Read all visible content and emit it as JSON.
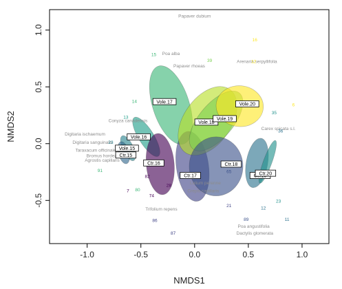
{
  "chart_data": {
    "type": "scatter",
    "xlabel": "NMDS1",
    "ylabel": "NMDS2",
    "xlim": [
      -1.35,
      1.25
    ],
    "ylim": [
      -0.88,
      1.18
    ],
    "x_ticks": [
      -1.0,
      -0.5,
      0.0,
      0.5,
      1.0
    ],
    "y_ticks": [
      -0.5,
      0.0,
      0.5,
      1.0
    ],
    "x_tick_labels": [
      "-1.0",
      "-0.5",
      "0.0",
      "0.5",
      "1.0"
    ],
    "y_tick_labels": [
      "-0.5",
      "0.0",
      "0.5",
      "1.0"
    ],
    "grid": false,
    "ellipses": [
      {
        "label": "Vole.17",
        "cx": -0.22,
        "cy": 0.34,
        "rx": 0.17,
        "ry": 0.36,
        "angle": 18,
        "color": "#3cb777"
      },
      {
        "label": "Vole.16",
        "cx": -0.45,
        "cy": 0.06,
        "rx": 0.07,
        "ry": 0.2,
        "angle": 32,
        "color": "#1f9e89"
      },
      {
        "label": "Vole.15",
        "cx": -0.62,
        "cy": -0.04,
        "rx": 0.05,
        "ry": 0.12,
        "angle": 25,
        "color": "#26828e"
      },
      {
        "label": "Ctr.15",
        "cx": -0.66,
        "cy": -0.08,
        "rx": 0.05,
        "ry": 0.1,
        "angle": 15,
        "color": "#30688e"
      },
      {
        "label": "Ctr.16",
        "cx": -0.32,
        "cy": -0.18,
        "rx": 0.13,
        "ry": 0.27,
        "angle": 5,
        "color": "#440154"
      },
      {
        "label": "Ctr.17",
        "cx": -0.02,
        "cy": -0.2,
        "rx": 0.15,
        "ry": 0.31,
        "angle": 8,
        "color": "#414487"
      },
      {
        "label": "Vole.18",
        "cx": 0.12,
        "cy": 0.2,
        "rx": 0.22,
        "ry": 0.34,
        "angle": -35,
        "color": "#b8de29"
      },
      {
        "label": "Vole.19",
        "cx": 0.2,
        "cy": 0.2,
        "rx": 0.16,
        "ry": 0.32,
        "angle": -40,
        "color": "#7ad151"
      },
      {
        "label": "Vole.20",
        "cx": 0.42,
        "cy": 0.33,
        "rx": 0.22,
        "ry": 0.18,
        "angle": -5,
        "color": "#fde725"
      },
      {
        "label": "Ctr.18",
        "cx": 0.2,
        "cy": -0.2,
        "rx": 0.25,
        "ry": 0.26,
        "angle": 0,
        "color": "#3b528b"
      },
      {
        "label": "Ctr.19",
        "cx": 0.58,
        "cy": -0.17,
        "rx": 0.1,
        "ry": 0.22,
        "angle": -10,
        "color": "#2c728e"
      },
      {
        "label": "Ctr.20",
        "cx": 0.68,
        "cy": -0.16,
        "rx": 0.04,
        "ry": 0.2,
        "angle": -20,
        "color": "#21918c"
      }
    ],
    "plot_labels": [
      {
        "text": "Vole.17",
        "x": -0.28,
        "y": 0.37
      },
      {
        "text": "Vole.16",
        "x": -0.52,
        "y": 0.06
      },
      {
        "text": "Vole.15",
        "x": -0.63,
        "y": -0.04
      },
      {
        "text": "Ctr.15",
        "x": -0.64,
        "y": -0.1
      },
      {
        "text": "Ctr.16",
        "x": -0.38,
        "y": -0.17
      },
      {
        "text": "Ctr.17",
        "x": -0.04,
        "y": -0.28
      },
      {
        "text": "Vole.18",
        "x": 0.11,
        "y": 0.19
      },
      {
        "text": "Vole.19",
        "x": 0.28,
        "y": 0.22
      },
      {
        "text": "Vole.20",
        "x": 0.49,
        "y": 0.35
      },
      {
        "text": "Ctr.18",
        "x": 0.34,
        "y": -0.18
      },
      {
        "text": "Ctr.19",
        "x": 0.61,
        "y": -0.28
      },
      {
        "text": "Ctr.20",
        "x": 0.66,
        "y": -0.26
      }
    ],
    "species_labels": [
      {
        "text": "Papaver dubium",
        "x": 0.0,
        "y": 1.11
      },
      {
        "text": "Poa alba",
        "x": -0.22,
        "y": 0.78
      },
      {
        "text": "Papaver rhoeas",
        "x": -0.05,
        "y": 0.67
      },
      {
        "text": "Arenaria serpyllifolia",
        "x": 0.58,
        "y": 0.71
      },
      {
        "text": "Conyza canadensis",
        "x": -0.62,
        "y": 0.19
      },
      {
        "text": "Digitaria ischaemum",
        "x": -1.02,
        "y": 0.07
      },
      {
        "text": "Digitaria sanguinalis",
        "x": -0.95,
        "y": 0.0
      },
      {
        "text": "Taraxacum officinale",
        "x": -0.92,
        "y": -0.07
      },
      {
        "text": "Bromus hordeaceus",
        "x": -0.82,
        "y": -0.12
      },
      {
        "text": "Agrostis capillaris",
        "x": -0.86,
        "y": -0.16
      },
      {
        "text": "Carex spicata s.l.",
        "x": 0.78,
        "y": 0.12
      },
      {
        "text": "Lolium perenne",
        "x": 0.1,
        "y": -0.36
      },
      {
        "text": "Crepis capillaris",
        "x": 0.08,
        "y": -0.43
      },
      {
        "text": "Trifolium repens",
        "x": -0.31,
        "y": -0.59
      },
      {
        "text": "Poa angustifolia",
        "x": 0.55,
        "y": -0.74
      },
      {
        "text": "Dactylis glomerata",
        "x": 0.56,
        "y": -0.8
      }
    ],
    "site_points": [
      {
        "text": "15",
        "x": -0.38,
        "y": 0.77,
        "color": "#3cb777"
      },
      {
        "text": "39",
        "x": 0.14,
        "y": 0.72,
        "color": "#7ad151"
      },
      {
        "text": "16",
        "x": 0.56,
        "y": 0.9,
        "color": "#fde725"
      },
      {
        "text": "12",
        "x": 0.55,
        "y": 0.71,
        "color": "#fde725"
      },
      {
        "text": "6",
        "x": 0.92,
        "y": 0.33,
        "color": "#fde725"
      },
      {
        "text": "14",
        "x": -0.56,
        "y": 0.36,
        "color": "#3cb777"
      },
      {
        "text": "13",
        "x": -0.64,
        "y": 0.22,
        "color": "#1f9e89"
      },
      {
        "text": "35",
        "x": 0.74,
        "y": 0.26,
        "color": "#21918c"
      },
      {
        "text": "36",
        "x": 0.8,
        "y": 0.1,
        "color": "#2c728e"
      },
      {
        "text": "23",
        "x": -0.78,
        "y": 0.0,
        "color": "#26828e"
      },
      {
        "text": "91",
        "x": -0.88,
        "y": -0.25,
        "color": "#3cb777"
      },
      {
        "text": "82",
        "x": -0.44,
        "y": -0.3,
        "color": "#440154"
      },
      {
        "text": "7",
        "x": -0.62,
        "y": -0.43,
        "color": "#440154"
      },
      {
        "text": "80",
        "x": -0.53,
        "y": -0.42,
        "color": "#3cb777"
      },
      {
        "text": "74",
        "x": -0.4,
        "y": -0.47,
        "color": "#440154"
      },
      {
        "text": "28",
        "x": -0.24,
        "y": -0.38,
        "color": "#440154"
      },
      {
        "text": "65",
        "x": 0.32,
        "y": -0.26,
        "color": "#3b528b"
      },
      {
        "text": "21",
        "x": 0.32,
        "y": -0.56,
        "color": "#414487"
      },
      {
        "text": "89",
        "x": 0.48,
        "y": -0.68,
        "color": "#3b528b"
      },
      {
        "text": "12",
        "x": 0.64,
        "y": -0.58,
        "color": "#2c728e"
      },
      {
        "text": "23",
        "x": 0.78,
        "y": -0.52,
        "color": "#21918c"
      },
      {
        "text": "11",
        "x": 0.86,
        "y": -0.68,
        "color": "#2c728e"
      },
      {
        "text": "86",
        "x": -0.37,
        "y": -0.69,
        "color": "#414487"
      },
      {
        "text": "87",
        "x": -0.2,
        "y": -0.8,
        "color": "#414487"
      }
    ]
  }
}
